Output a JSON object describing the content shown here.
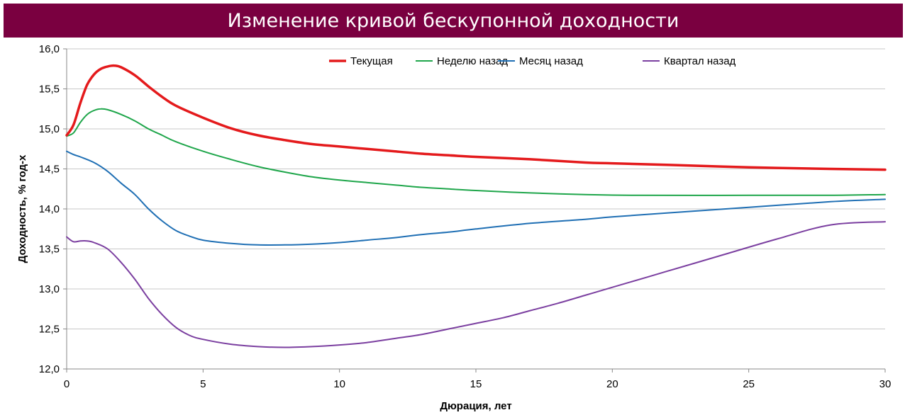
{
  "chart_data": {
    "type": "line",
    "title": "Изменение кривой бескупонной доходности",
    "xlabel": "Дюрация, лет",
    "ylabel": "Доходность, % год-х",
    "xlim": [
      0,
      30
    ],
    "ylim": [
      12.0,
      16.0
    ],
    "x_ticks": [
      "0",
      "5",
      "10",
      "15",
      "20",
      "25",
      "30"
    ],
    "x_tick_values": [
      0,
      5,
      10,
      15,
      20,
      25,
      30
    ],
    "y_ticks": [
      "12,0",
      "12,5",
      "13,0",
      "13,5",
      "14,0",
      "14,5",
      "15,0",
      "15,5",
      "16,0"
    ],
    "y_tick_values": [
      12.0,
      12.5,
      13.0,
      13.5,
      14.0,
      14.5,
      15.0,
      15.5,
      16.0
    ],
    "grid": "horizontal",
    "legend_position": "top",
    "series": [
      {
        "name": "Текущая",
        "color": "#e41a1c",
        "width": 3.5,
        "points": [
          [
            0,
            14.92
          ],
          [
            0.25,
            15.05
          ],
          [
            0.5,
            15.32
          ],
          [
            0.75,
            15.55
          ],
          [
            1,
            15.68
          ],
          [
            1.25,
            15.75
          ],
          [
            1.5,
            15.78
          ],
          [
            1.75,
            15.79
          ],
          [
            2,
            15.77
          ],
          [
            2.5,
            15.67
          ],
          [
            3,
            15.53
          ],
          [
            3.5,
            15.4
          ],
          [
            4,
            15.29
          ],
          [
            5,
            15.14
          ],
          [
            6,
            15.01
          ],
          [
            7,
            14.92
          ],
          [
            8,
            14.86
          ],
          [
            9,
            14.81
          ],
          [
            10,
            14.78
          ],
          [
            11,
            14.75
          ],
          [
            12,
            14.72
          ],
          [
            13,
            14.69
          ],
          [
            14,
            14.67
          ],
          [
            15,
            14.65
          ],
          [
            17,
            14.62
          ],
          [
            19,
            14.58
          ],
          [
            20,
            14.57
          ],
          [
            22,
            14.55
          ],
          [
            25,
            14.52
          ],
          [
            28,
            14.5
          ],
          [
            30,
            14.49
          ]
        ]
      },
      {
        "name": "Неделю назад",
        "color": "#1fa64b",
        "width": 2,
        "points": [
          [
            0,
            14.91
          ],
          [
            0.25,
            14.95
          ],
          [
            0.5,
            15.08
          ],
          [
            0.75,
            15.18
          ],
          [
            1,
            15.23
          ],
          [
            1.25,
            15.25
          ],
          [
            1.5,
            15.24
          ],
          [
            2,
            15.18
          ],
          [
            2.5,
            15.1
          ],
          [
            3,
            15.0
          ],
          [
            3.5,
            14.92
          ],
          [
            4,
            14.84
          ],
          [
            5,
            14.72
          ],
          [
            6,
            14.62
          ],
          [
            7,
            14.53
          ],
          [
            8,
            14.46
          ],
          [
            9,
            14.4
          ],
          [
            10,
            14.36
          ],
          [
            11,
            14.33
          ],
          [
            12,
            14.3
          ],
          [
            13,
            14.27
          ],
          [
            14,
            14.25
          ],
          [
            15,
            14.23
          ],
          [
            17,
            14.2
          ],
          [
            19,
            14.18
          ],
          [
            21,
            14.17
          ],
          [
            25,
            14.17
          ],
          [
            28,
            14.17
          ],
          [
            30,
            14.18
          ]
        ]
      },
      {
        "name": "Месяц назад",
        "color": "#1f6fb4",
        "width": 2,
        "points": [
          [
            0,
            14.72
          ],
          [
            0.25,
            14.68
          ],
          [
            0.5,
            14.65
          ],
          [
            1,
            14.58
          ],
          [
            1.5,
            14.47
          ],
          [
            2,
            14.32
          ],
          [
            2.5,
            14.18
          ],
          [
            3,
            14.0
          ],
          [
            3.5,
            13.85
          ],
          [
            4,
            13.73
          ],
          [
            4.5,
            13.66
          ],
          [
            5,
            13.61
          ],
          [
            6,
            13.57
          ],
          [
            7,
            13.55
          ],
          [
            8,
            13.55
          ],
          [
            9,
            13.56
          ],
          [
            10,
            13.58
          ],
          [
            11,
            13.61
          ],
          [
            12,
            13.64
          ],
          [
            13,
            13.68
          ],
          [
            14,
            13.71
          ],
          [
            15,
            13.75
          ],
          [
            17,
            13.82
          ],
          [
            19,
            13.87
          ],
          [
            20,
            13.9
          ],
          [
            22,
            13.95
          ],
          [
            25,
            14.02
          ],
          [
            28,
            14.09
          ],
          [
            30,
            14.12
          ]
        ]
      },
      {
        "name": "Квартал назад",
        "color": "#7b3fa0",
        "width": 2,
        "points": [
          [
            0,
            13.65
          ],
          [
            0.25,
            13.59
          ],
          [
            0.5,
            13.6
          ],
          [
            0.75,
            13.6
          ],
          [
            1,
            13.58
          ],
          [
            1.5,
            13.5
          ],
          [
            2,
            13.33
          ],
          [
            2.5,
            13.12
          ],
          [
            3,
            12.88
          ],
          [
            3.5,
            12.68
          ],
          [
            4,
            12.52
          ],
          [
            4.5,
            12.42
          ],
          [
            5,
            12.37
          ],
          [
            6,
            12.31
          ],
          [
            7,
            12.28
          ],
          [
            8,
            12.27
          ],
          [
            9,
            12.28
          ],
          [
            10,
            12.3
          ],
          [
            11,
            12.33
          ],
          [
            12,
            12.38
          ],
          [
            13,
            12.43
          ],
          [
            14,
            12.5
          ],
          [
            15,
            12.57
          ],
          [
            16,
            12.64
          ],
          [
            17,
            12.73
          ],
          [
            18,
            12.82
          ],
          [
            19,
            12.92
          ],
          [
            20,
            13.02
          ],
          [
            22,
            13.22
          ],
          [
            24,
            13.42
          ],
          [
            26,
            13.62
          ],
          [
            28,
            13.8
          ],
          [
            30,
            13.84
          ]
        ]
      }
    ]
  }
}
